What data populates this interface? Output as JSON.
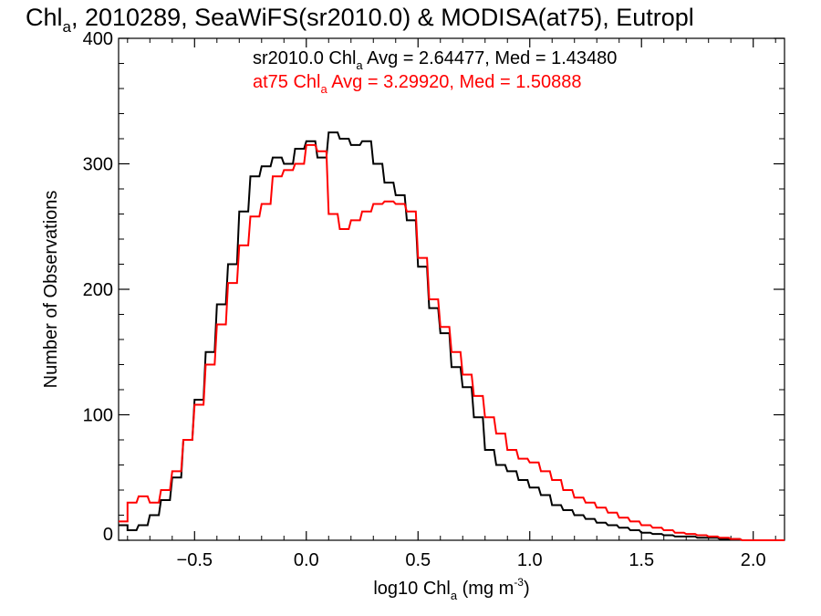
{
  "chart_data": {
    "type": "line",
    "title": "Chl",
    "title_sub": "a",
    "title_rest": ", 2010289, SeaWiFS(sr2010.0) & MODISA(at75), Eutropl",
    "xlabel_main": "log10 Chl",
    "xlabel_sub": "a",
    "xlabel_unit": " (mg m",
    "xlabel_sup": "-3",
    "xlabel_close": ")",
    "ylabel": "Number of Observations",
    "xlim": [
      -0.84,
      2.14
    ],
    "ylim": [
      0,
      400
    ],
    "xticks": [
      -0.5,
      0.0,
      0.5,
      1.0,
      1.5,
      2.0
    ],
    "xtick_labels": [
      "−0.5",
      "0.0",
      "0.5",
      "1.0",
      "1.5",
      "2.0"
    ],
    "yticks": [
      0,
      100,
      200,
      300,
      400
    ],
    "ytick_labels": [
      "0",
      "100",
      "200",
      "300",
      "400"
    ],
    "grid": false,
    "legend": [
      {
        "prefix": "sr2010.0 Chl",
        "sub": "a",
        "suffix": " Avg = 2.64477, Med = 1.43480",
        "color": "#000000"
      },
      {
        "prefix": "at75 Chl",
        "sub": "a",
        "suffix": " Avg = 3.29920, Med = 1.50888",
        "color": "#ff0000"
      }
    ],
    "series": [
      {
        "color": "#000000",
        "x": [
          -0.84,
          -0.8,
          -0.75,
          -0.7,
          -0.65,
          -0.6,
          -0.55,
          -0.5,
          -0.45,
          -0.4,
          -0.35,
          -0.3,
          -0.25,
          -0.2,
          -0.15,
          -0.1,
          -0.05,
          0.0,
          0.05,
          0.1,
          0.15,
          0.2,
          0.25,
          0.3,
          0.35,
          0.4,
          0.45,
          0.5,
          0.55,
          0.6,
          0.65,
          0.7,
          0.75,
          0.8,
          0.85,
          0.9,
          0.95,
          1.0,
          1.05,
          1.1,
          1.15,
          1.2,
          1.25,
          1.3,
          1.35,
          1.4,
          1.45,
          1.5,
          1.55,
          1.6,
          1.65,
          1.7,
          1.75,
          1.8,
          1.85,
          1.9,
          1.95,
          2.0,
          2.05,
          2.1
        ],
        "y": [
          12,
          8,
          12,
          20,
          32,
          50,
          80,
          112,
          150,
          188,
          220,
          262,
          290,
          298,
          305,
          300,
          312,
          318,
          305,
          325,
          320,
          315,
          318,
          300,
          285,
          275,
          255,
          218,
          185,
          165,
          138,
          122,
          98,
          72,
          60,
          55,
          48,
          42,
          36,
          28,
          24,
          20,
          17,
          14,
          12,
          10,
          8,
          6,
          5,
          4,
          3,
          3,
          2,
          2,
          1,
          1,
          0,
          0,
          0,
          0
        ]
      },
      {
        "color": "#ff0000",
        "x": [
          -0.84,
          -0.8,
          -0.75,
          -0.7,
          -0.65,
          -0.6,
          -0.55,
          -0.5,
          -0.45,
          -0.4,
          -0.35,
          -0.3,
          -0.25,
          -0.2,
          -0.15,
          -0.1,
          -0.05,
          0.0,
          0.05,
          0.1,
          0.15,
          0.2,
          0.25,
          0.3,
          0.35,
          0.4,
          0.45,
          0.5,
          0.55,
          0.6,
          0.65,
          0.7,
          0.75,
          0.8,
          0.85,
          0.9,
          0.95,
          1.0,
          1.05,
          1.1,
          1.15,
          1.2,
          1.25,
          1.3,
          1.35,
          1.4,
          1.45,
          1.5,
          1.55,
          1.6,
          1.65,
          1.7,
          1.75,
          1.8,
          1.85,
          1.9,
          1.95,
          2.0,
          2.05,
          2.1
        ],
        "y": [
          15,
          30,
          35,
          30,
          40,
          55,
          80,
          108,
          140,
          172,
          205,
          235,
          258,
          268,
          290,
          295,
          300,
          315,
          310,
          260,
          248,
          255,
          262,
          268,
          270,
          268,
          262,
          225,
          192,
          170,
          150,
          132,
          115,
          98,
          85,
          72,
          65,
          62,
          55,
          48,
          40,
          34,
          30,
          26,
          22,
          18,
          15,
          12,
          10,
          8,
          6,
          5,
          4,
          3,
          2,
          1,
          0,
          0,
          0,
          0
        ]
      }
    ]
  }
}
